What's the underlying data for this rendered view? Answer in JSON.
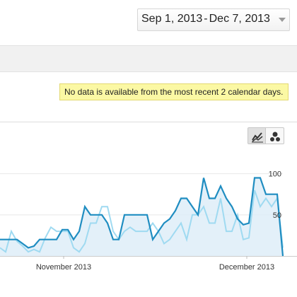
{
  "header": {
    "date_start": "Sep 1, 2013",
    "date_sep": "-",
    "date_end": "Dec 7, 2013"
  },
  "notice": {
    "text": "No data is available from the most recent 2 calendar days."
  },
  "view_toggles": [
    {
      "icon": "line-chart-icon",
      "selected": true
    },
    {
      "icon": "motion-chart-icon",
      "selected": false
    }
  ],
  "colors": {
    "primary_line": "#1f8dc1",
    "primary_fill": "#dcecf8",
    "secondary_line": "#9fdaf1",
    "notice_bg": "#fbf8a4",
    "grid": "#e8e8e8"
  },
  "chart_data": {
    "type": "line",
    "x_ticks": [
      "November 2013",
      "December 2013"
    ],
    "y_ticks": [
      50,
      100
    ],
    "ylim": [
      0,
      110
    ],
    "grid": true,
    "series": [
      {
        "values": [
          20,
          20,
          20,
          20,
          15,
          10,
          12,
          20,
          20,
          20,
          20,
          32,
          32,
          20,
          30,
          60,
          50,
          50,
          50,
          40,
          20,
          20,
          50,
          50,
          50,
          50,
          50,
          20,
          30,
          40,
          45,
          55,
          70,
          70,
          60,
          50,
          95,
          70,
          70,
          85,
          70,
          60,
          45,
          38,
          40,
          95,
          95,
          75,
          75,
          75,
          0
        ]
      },
      {
        "values": [
          10,
          5,
          30,
          18,
          12,
          5,
          8,
          5,
          22,
          35,
          30,
          30,
          30,
          10,
          5,
          15,
          40,
          40,
          60,
          60,
          30,
          20,
          30,
          35,
          30,
          30,
          30,
          40,
          30,
          15,
          20,
          30,
          40,
          20,
          50,
          50,
          60,
          40,
          40,
          70,
          30,
          30,
          50,
          20,
          22,
          80,
          60,
          70,
          60,
          70,
          10
        ]
      }
    ]
  }
}
